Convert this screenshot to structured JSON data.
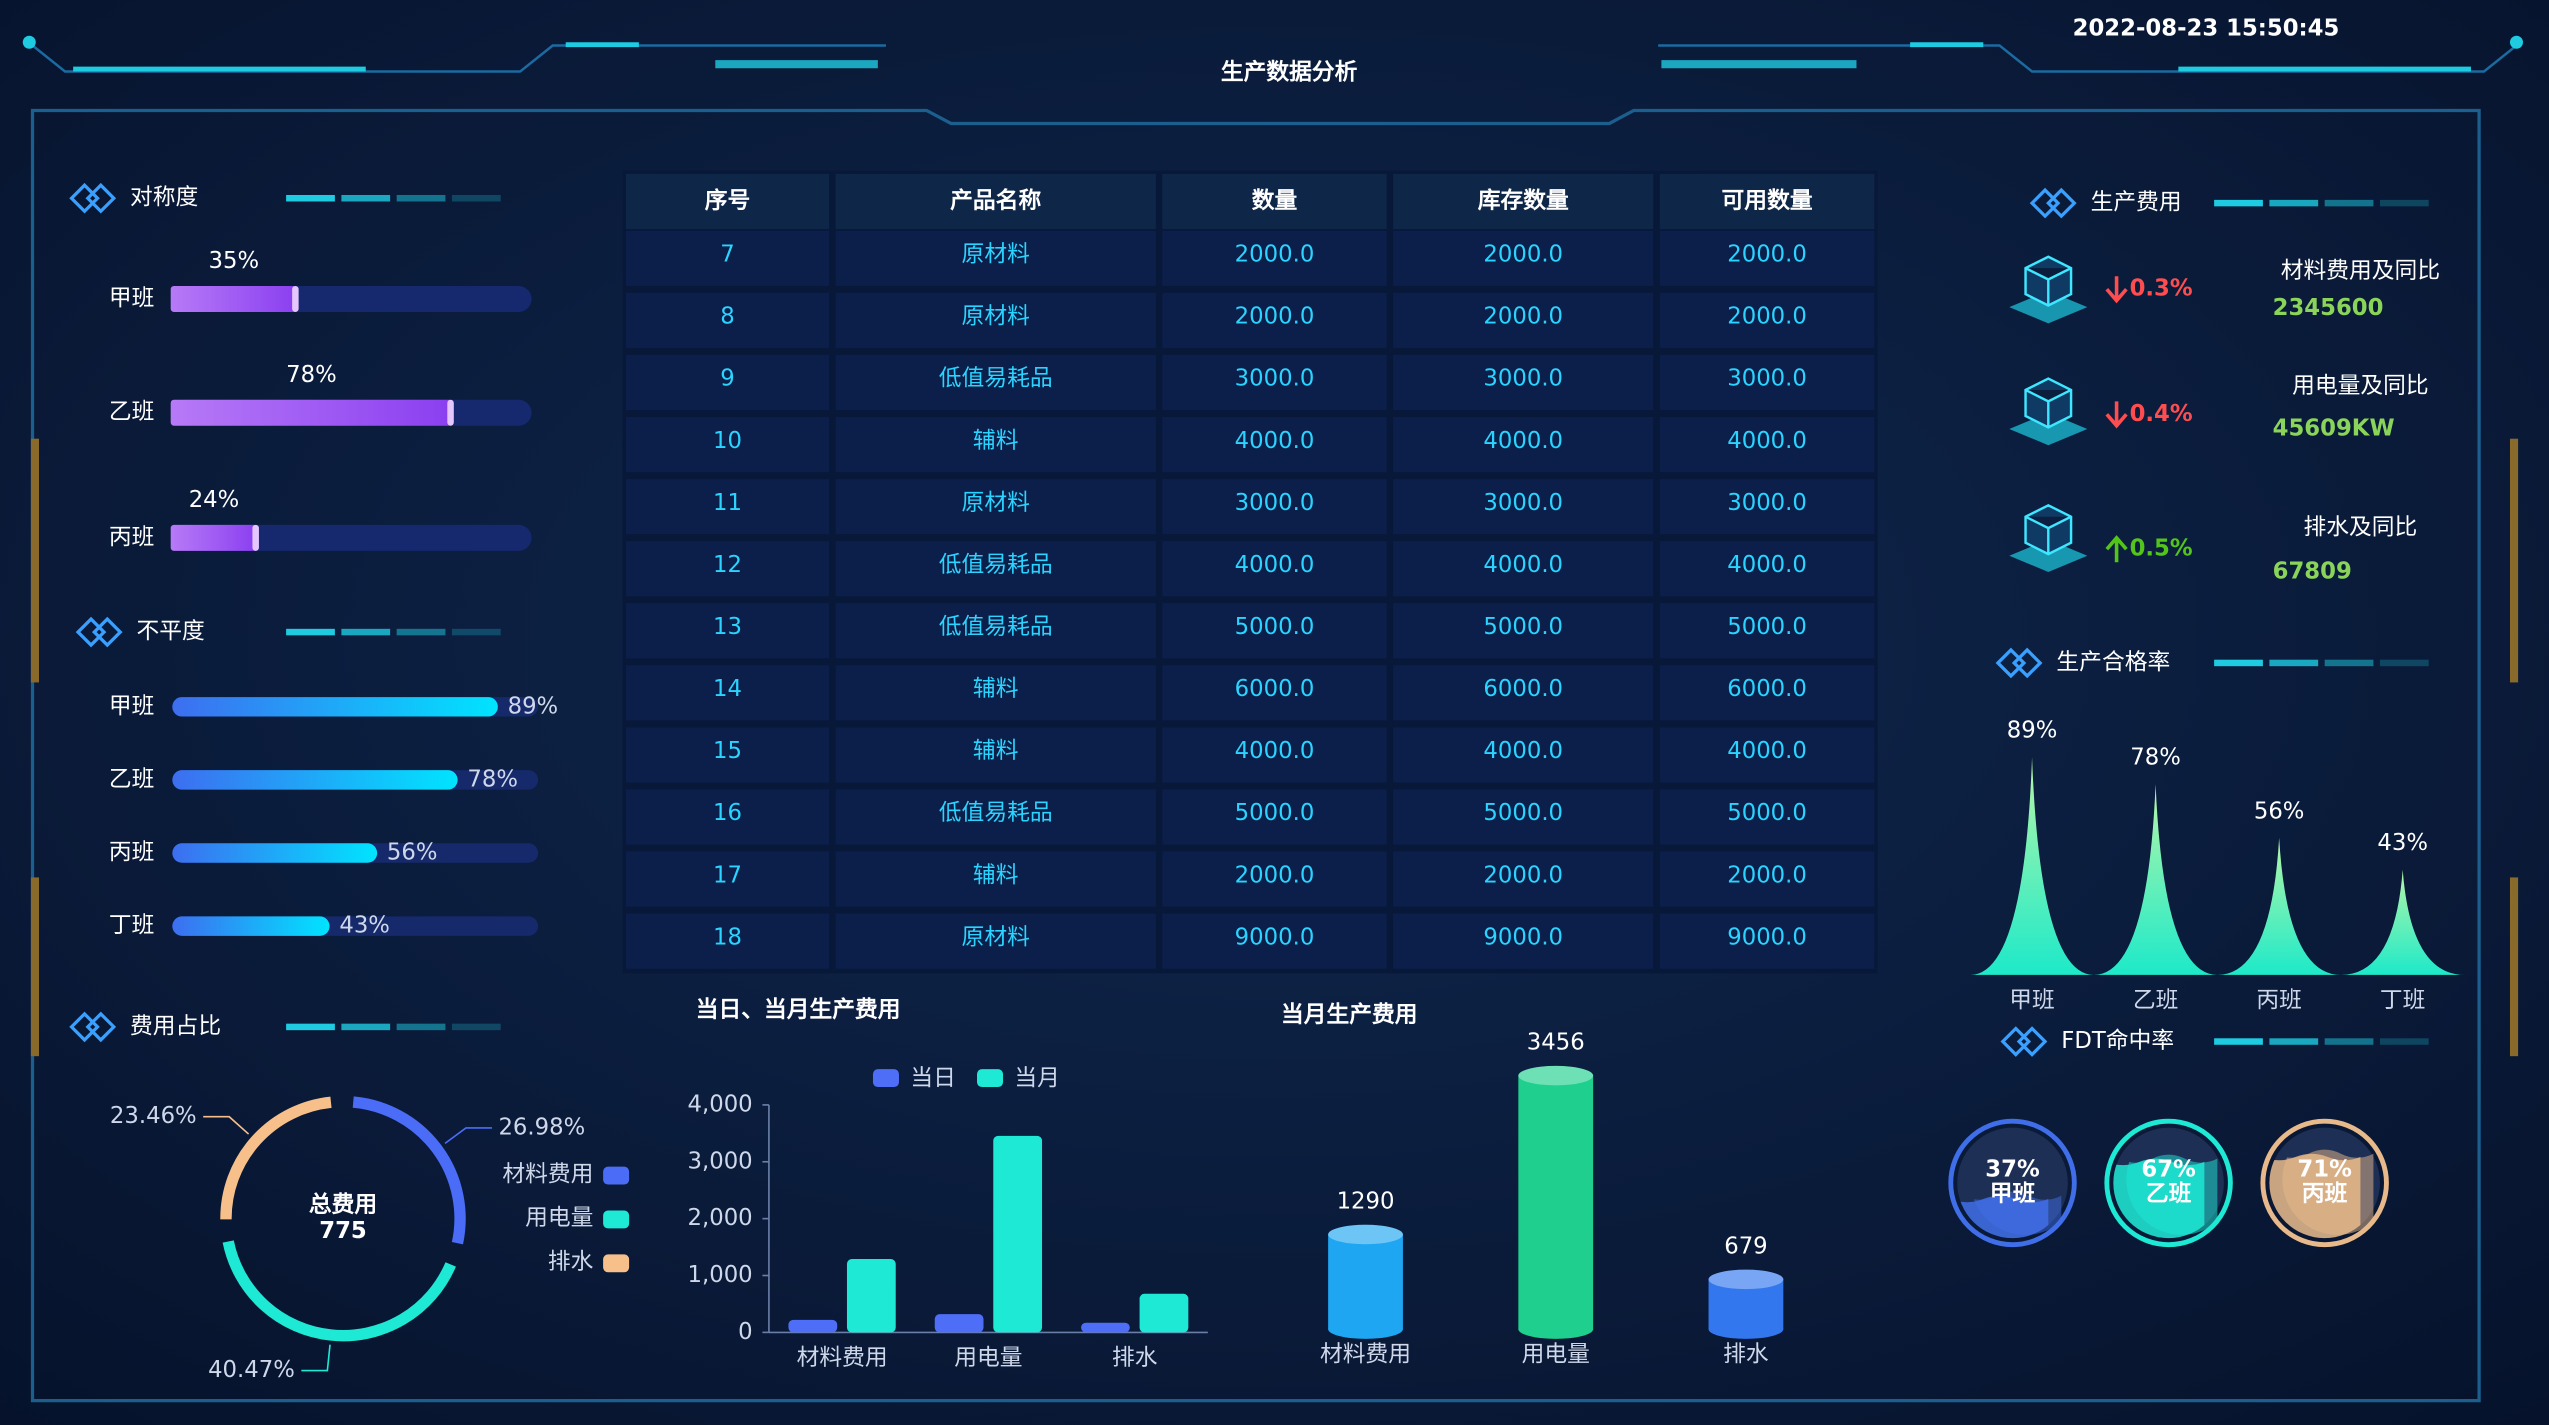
{
  "header": {
    "title": "生产数据分析",
    "datetime": "2022-08-23 15:50:45"
  },
  "kpis": {
    "title": "生产费用",
    "items": [
      {
        "name": "材料费用及同比",
        "change": "0.3%",
        "direction": "down",
        "value": "2345600"
      },
      {
        "name": "用电量及同比",
        "change": "0.4%",
        "direction": "down",
        "value": "45609KW"
      },
      {
        "name": "排水及同比",
        "change": "0.5%",
        "direction": "up",
        "value": "67809"
      }
    ]
  },
  "table": {
    "columns": [
      "序号",
      "产品名称",
      "数量",
      "库存数量",
      "可用数量"
    ],
    "rows": [
      [
        "7",
        "原材料",
        "2000.0",
        "2000.0",
        "2000.0"
      ],
      [
        "8",
        "原材料",
        "2000.0",
        "2000.0",
        "2000.0"
      ],
      [
        "9",
        "低值易耗品",
        "3000.0",
        "3000.0",
        "3000.0"
      ],
      [
        "10",
        "辅料",
        "4000.0",
        "4000.0",
        "4000.0"
      ],
      [
        "11",
        "原材料",
        "3000.0",
        "3000.0",
        "3000.0"
      ],
      [
        "12",
        "低值易耗品",
        "4000.0",
        "4000.0",
        "4000.0"
      ],
      [
        "13",
        "低值易耗品",
        "5000.0",
        "5000.0",
        "5000.0"
      ],
      [
        "14",
        "辅料",
        "6000.0",
        "6000.0",
        "6000.0"
      ],
      [
        "15",
        "辅料",
        "4000.0",
        "4000.0",
        "4000.0"
      ],
      [
        "16",
        "低值易耗品",
        "5000.0",
        "5000.0",
        "5000.0"
      ],
      [
        "17",
        "辅料",
        "2000.0",
        "2000.0",
        "2000.0"
      ],
      [
        "18",
        "原材料",
        "9000.0",
        "9000.0",
        "9000.0"
      ]
    ]
  },
  "chart_data": [
    {
      "type": "progress",
      "title": "对称度",
      "categories": [
        "甲班",
        "乙班",
        "丙班"
      ],
      "values": [
        35,
        78,
        24
      ],
      "value_labels": [
        "35%",
        "78%",
        "24%"
      ],
      "xlim": [
        0,
        100
      ],
      "color": [
        "#b77af7",
        "#8a3ff0"
      ],
      "track_color": "#16286e"
    },
    {
      "type": "progress",
      "title": "不平度",
      "categories": [
        "甲班",
        "乙班",
        "丙班",
        "丁班"
      ],
      "values": [
        89,
        78,
        56,
        43
      ],
      "value_labels": [
        "89%",
        "78%",
        "56%",
        "43%"
      ],
      "xlim": [
        0,
        100
      ],
      "color": [
        "#3d6ef0",
        "#00e4ff"
      ],
      "track_color": "#16296b"
    },
    {
      "type": "donut",
      "title": "费用占比",
      "center_label": "总费用",
      "total": "775",
      "categories": [
        "材料费用",
        "用电量",
        "排水"
      ],
      "values": [
        26.98,
        40.47,
        23.46
      ],
      "value_labels": [
        "26.98%",
        "40.47%",
        "23.46%"
      ],
      "colors": [
        "#4a6cf7",
        "#1de9d4",
        "#f7c08a"
      ]
    },
    {
      "type": "bar",
      "title": "当日、当月生产费用",
      "categories": [
        "材料费用",
        "用电量",
        "排水"
      ],
      "series": [
        {
          "name": "当日",
          "color": "#4f6ef7",
          "values": [
            220,
            320,
            170
          ]
        },
        {
          "name": "当月",
          "color": "#1de9d4",
          "values": [
            1290,
            3456,
            679
          ]
        }
      ],
      "ylim": [
        0,
        4000
      ],
      "yticks": [
        0,
        {
          "value": 1000,
          "label": "1,000"
        },
        {
          "value": 2000,
          "label": "2,000"
        },
        {
          "value": 3000,
          "label": "3,000"
        },
        {
          "value": 4000,
          "label": "4,000"
        }
      ]
    },
    {
      "type": "cylinder",
      "title": "当月生产费用",
      "categories": [
        "材料费用",
        "用电量",
        "排水"
      ],
      "values": [
        1290,
        3456,
        679
      ],
      "colors": [
        "#1fa6f2",
        "#1fcf8e",
        "#3277ee"
      ]
    },
    {
      "type": "spike",
      "title": "生产合格率",
      "categories": [
        "甲班",
        "乙班",
        "丙班",
        "丁班"
      ],
      "values": [
        89,
        78,
        56,
        43
      ],
      "value_labels": [
        "89%",
        "78%",
        "56%",
        "43%"
      ],
      "color": [
        "#b6f7a8",
        "#1de9c9"
      ]
    },
    {
      "type": "liquid",
      "title": "FDT命中率",
      "categories": [
        "甲班",
        "乙班",
        "丙班"
      ],
      "values": [
        37,
        67,
        71
      ],
      "value_labels": [
        "37%",
        "67%",
        "71%"
      ],
      "colors": [
        "#3f6ee8",
        "#1de9d4",
        "#e8b98a"
      ]
    }
  ]
}
